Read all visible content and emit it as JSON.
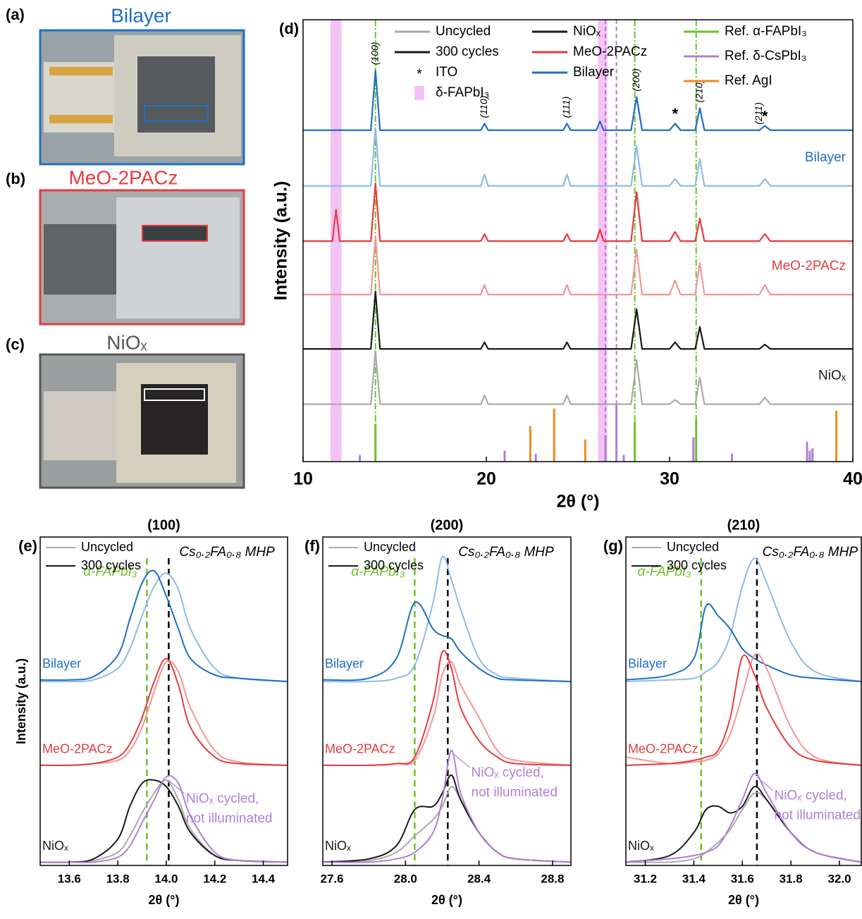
{
  "photos": [
    {
      "letter": "(a)",
      "title": "Bilayer"
    },
    {
      "letter": "(b)",
      "title": "MeO-2PACz"
    },
    {
      "letter": "(c)",
      "title": "NiOₓ"
    }
  ],
  "chart_data": [
    {
      "type": "line",
      "panel": "(d)",
      "xlabel": "2θ (°)",
      "ylabel": "Intensity (a.u.)",
      "xlim": [
        10,
        40
      ],
      "xticks": [
        10,
        20,
        30,
        40
      ],
      "ylim": [
        0,
        100
      ],
      "legend": [
        [
          {
            "label": "Uncycled",
            "color": "#aaaaaa"
          },
          {
            "label": "300 cycles",
            "color": "#1a1a1a"
          },
          {
            "label": "ITO",
            "marker": "*"
          },
          {
            "label": "δ-FAPbI₃",
            "color": "#f5c2f5",
            "marker": "band"
          }
        ],
        [
          {
            "label": "NiOₓ",
            "color": "#1a1a1a"
          },
          {
            "label": "MeO-2PACz",
            "color": "#e63b3f"
          },
          {
            "label": "Bilayer",
            "color": "#1f6fc5"
          }
        ]
      ],
      "bands": [
        [
          11.5,
          12.1
        ],
        [
          26.1,
          26.6
        ]
      ],
      "references": [
        {
          "name": "Ref. α-FAPbI₃",
          "color": "#6cc12a",
          "guide": "dash-dot",
          "positions": [
            13.95,
            28.1,
            31.45
          ],
          "heights": [
            8.5,
            9,
            9.5
          ]
        },
        {
          "name": "Ref. δ-CsPbI₃",
          "color": "#b07fd8",
          "guide": "dashed",
          "positions": [
            13.1,
            21.0,
            22.7,
            26.5,
            27.1,
            27.5,
            31.3,
            33.4,
            37.5,
            37.65,
            37.8
          ],
          "heights": [
            1.5,
            2.5,
            1.8,
            6,
            13,
            1.5,
            5.5,
            1.8,
            4.5,
            2.5,
            3
          ]
        },
        {
          "name": "Ref. AgI",
          "color": "#f08a1c",
          "positions": [
            22.4,
            23.7,
            25.4,
            39.1
          ],
          "heights": [
            8,
            12,
            5,
            11.5
          ]
        }
      ],
      "x": [
        10,
        11.6,
        11.8,
        12.0,
        13.7,
        13.95,
        14.2,
        19.7,
        19.9,
        20.1,
        24.2,
        24.4,
        24.6,
        26.0,
        26.2,
        26.4,
        27.9,
        28.2,
        28.5,
        30.0,
        30.3,
        30.6,
        31.4,
        31.65,
        31.9,
        34.9,
        35.2,
        35.5,
        40
      ],
      "series": [
        {
          "color": "#aaaaaa",
          "label": "NiOₓ",
          "label_color": "#1a1a1a",
          "values": [
            13,
            13,
            13,
            13,
            13,
            25,
            13,
            13,
            15,
            13,
            13,
            15,
            13,
            13,
            13,
            13,
            13,
            23,
            13,
            13,
            14,
            13,
            13,
            19,
            13,
            13,
            14.5,
            13,
            13
          ]
        },
        {
          "color": "#1a1a1a",
          "values": [
            25.5,
            25.5,
            25.5,
            25.5,
            25.5,
            38.5,
            25.5,
            25.5,
            27,
            25.5,
            25.5,
            27,
            25.5,
            25.5,
            25.5,
            25.5,
            25.5,
            34.5,
            25.5,
            25.5,
            27,
            25.5,
            25.5,
            30.5,
            25.5,
            25.5,
            26.5,
            25.5,
            25.5
          ]
        },
        {
          "color": "#f29696",
          "label": "MeO-2PACz",
          "label_color": "#e63b3f",
          "values": [
            37.8,
            37.8,
            37.8,
            37.8,
            37.8,
            51,
            37.8,
            37.8,
            40,
            37.8,
            37.8,
            40,
            37.8,
            37.8,
            37.8,
            37.8,
            37.8,
            48,
            37.8,
            37.8,
            41,
            37.8,
            37.8,
            45,
            37.8,
            37.8,
            40,
            37.8,
            37.8
          ]
        },
        {
          "color": "#e63b3f",
          "values": [
            49.9,
            49.9,
            57,
            49.9,
            49.9,
            63,
            49.9,
            49.9,
            51.5,
            49.9,
            49.9,
            51.5,
            49.9,
            49.9,
            52.5,
            49.9,
            49.9,
            61,
            49.9,
            49.9,
            52,
            49.9,
            49.9,
            55,
            49.9,
            49.9,
            51.5,
            49.9,
            49.9
          ]
        },
        {
          "color": "#8fbbe8",
          "label": "Bilayer",
          "label_color": "#1f6fc5",
          "values": [
            62.4,
            62.4,
            62.4,
            62.4,
            62.4,
            75.4,
            62.4,
            62.4,
            65,
            62.4,
            62.4,
            65,
            62.4,
            62.4,
            62.4,
            62.4,
            62.4,
            71.5,
            62.4,
            62.4,
            64,
            62.4,
            62.4,
            68.5,
            62.4,
            62.4,
            64,
            62.4,
            62.4
          ]
        },
        {
          "color": "#1f6fc5",
          "values": [
            75,
            75,
            75,
            75,
            75,
            88.5,
            75,
            75,
            76.5,
            75,
            75,
            76.5,
            75,
            75,
            77,
            75,
            75,
            82.5,
            75,
            75,
            76.5,
            75,
            75,
            80,
            75,
            75,
            76,
            75,
            75
          ]
        }
      ],
      "annotations": [
        {
          "text": "(100)",
          "x": 13.95,
          "rotated": true
        },
        {
          "text": "(110)",
          "x": 19.9,
          "rotated": true
        },
        {
          "text": "(111)",
          "x": 24.4,
          "rotated": true
        },
        {
          "text": "(200)",
          "x": 28.2,
          "rotated": true
        },
        {
          "text": "*",
          "x": 30.3
        },
        {
          "text": "(210)",
          "x": 31.65,
          "rotated": true
        },
        {
          "text": "(211)",
          "x": 34.9,
          "rotated": true
        },
        {
          "text": "*",
          "x": 35.2
        }
      ]
    },
    {
      "type": "line",
      "panel": "(e)",
      "title": "(100)",
      "xlabel": "2θ (°)",
      "ylabel": "Intensity (a.u.)",
      "xlim": [
        13.48,
        14.5
      ],
      "xticks": [
        13.6,
        13.8,
        {
          "value": 14,
          "label": "14.0"
        },
        14.2,
        14.4
      ],
      "ylim": [
        0,
        100
      ],
      "legend": [
        {
          "label": "Uncycled",
          "color": "#aaaaaa"
        },
        {
          "label": "300 cycles",
          "color": "#1a1a1a"
        }
      ],
      "guides": [
        {
          "x": 13.92,
          "label": "α-FAPbI₃",
          "color": "#6cc12a"
        },
        {
          "x": 14.01,
          "label": "Cs₀.₂FA₀.₈ MHP",
          "color": "#000000"
        }
      ],
      "x": [
        13.48,
        13.6,
        13.7,
        13.8,
        13.85,
        13.9,
        13.95,
        14.0,
        14.05,
        14.1,
        14.2,
        14.3,
        14.5
      ],
      "series": [
        {
          "color": "#8fbbe8",
          "values": [
            56,
            56,
            56.5,
            60,
            66,
            76,
            85,
            89,
            84,
            72,
            60,
            57,
            56
          ]
        },
        {
          "color": "#1f6fc5",
          "label": "Bilayer",
          "values": [
            56.5,
            56.5,
            57.5,
            64,
            75,
            86,
            89.7,
            82,
            72,
            63,
            58,
            57,
            56
          ]
        },
        {
          "color": "#f29696",
          "values": [
            30.5,
            30.5,
            31,
            32,
            35,
            42,
            53,
            62,
            59,
            48,
            35,
            31.5,
            30.5
          ]
        },
        {
          "color": "#e63b3f",
          "label": "MeO-2PACz",
          "values": [
            30.5,
            30.5,
            31,
            33,
            37,
            45,
            56,
            63,
            55,
            42,
            33,
            31,
            30.5
          ]
        },
        {
          "color": "#aaaaaa",
          "values": [
            1,
            1,
            1.5,
            4,
            9,
            16,
            22,
            26,
            20,
            11,
            3,
            1.5,
            1
          ]
        },
        {
          "color": "#1a1a1a",
          "label": "NiOₓ",
          "values": [
            1,
            1,
            2,
            8,
            18,
            25,
            26,
            24,
            18,
            10,
            3,
            1.5,
            1
          ]
        },
        {
          "color": "#b07fd8",
          "label": [
            "NiOₓ cycled,",
            "not illuminated"
          ],
          "values": [
            1,
            1,
            1,
            2.5,
            6,
            13,
            20,
            27,
            25,
            15,
            4,
            1.5,
            1
          ]
        }
      ]
    },
    {
      "type": "line",
      "panel": "(f)",
      "title": "(200)",
      "xlabel": "2θ (°)",
      "xlim": [
        27.55,
        28.9
      ],
      "xticks": [
        27.6,
        {
          "value": 28,
          "label": "28.0"
        },
        28.4,
        28.8
      ],
      "ylim": [
        0,
        100
      ],
      "legend": [
        {
          "label": "Uncycled",
          "color": "#aaaaaa"
        },
        {
          "label": "300 cycles",
          "color": "#1a1a1a"
        }
      ],
      "guides": [
        {
          "x": 28.05,
          "label": "α-FAPbI₃",
          "color": "#6cc12a"
        },
        {
          "x": 28.23,
          "label": "Cs₀.₂FA₀.₈ MHP",
          "color": "#000000"
        }
      ],
      "x": [
        27.55,
        27.8,
        27.95,
        28.05,
        28.15,
        28.2,
        28.25,
        28.3,
        28.4,
        28.5,
        28.6,
        28.9
      ],
      "series": [
        {
          "color": "#8fbbe8",
          "values": [
            56,
            56,
            57,
            61,
            80,
            94,
            87,
            78,
            63,
            58,
            57,
            56
          ]
        },
        {
          "color": "#1f6fc5",
          "label": "Bilayer",
          "values": [
            56.5,
            57,
            63,
            80,
            72,
            70,
            69,
            65,
            60,
            57,
            56.5,
            56
          ]
        },
        {
          "color": "#f29696",
          "values": [
            30.5,
            30.5,
            31,
            32,
            45,
            58,
            62,
            55,
            45,
            35,
            32,
            30.5
          ]
        },
        {
          "color": "#e63b3f",
          "label": "MeO-2PACz",
          "values": [
            30.5,
            30.5,
            31,
            33,
            50,
            65,
            60,
            48,
            38,
            33,
            31,
            30.5
          ]
        },
        {
          "color": "#aaaaaa",
          "values": [
            1,
            1.5,
            4,
            9,
            14,
            18,
            24,
            20,
            10,
            4,
            2,
            1
          ]
        },
        {
          "color": "#1a1a1a",
          "label": "NiOₓ",
          "values": [
            1,
            2,
            6,
            17,
            18,
            22,
            27.5,
            20,
            10,
            4,
            2,
            1
          ]
        },
        {
          "color": "#b07fd8",
          "label": [
            "NiOₓ cycled,",
            "not illuminated"
          ],
          "values": [
            1,
            1,
            2,
            4,
            10,
            20,
            35,
            22,
            10,
            4,
            2,
            1
          ]
        }
      ]
    },
    {
      "type": "line",
      "panel": "(g)",
      "title": "(210)",
      "xlabel": "2θ (°)",
      "xlim": [
        31.12,
        32.09
      ],
      "xticks": [
        31.2,
        31.4,
        31.6,
        31.8,
        {
          "value": 32,
          "label": "32.0"
        }
      ],
      "ylim": [
        0,
        100
      ],
      "legend": [
        {
          "label": "Uncycled",
          "color": "#aaaaaa"
        },
        {
          "label": "300 cycles",
          "color": "#1a1a1a"
        }
      ],
      "guides": [
        {
          "x": 31.43,
          "label": "α-FAPbI₃",
          "color": "#6cc12a"
        },
        {
          "x": 31.66,
          "label": "Cs₀.₂FA₀.₈ MHP",
          "color": "#000000"
        }
      ],
      "x": [
        31.12,
        31.3,
        31.4,
        31.45,
        31.5,
        31.55,
        31.6,
        31.65,
        31.7,
        31.8,
        31.9,
        32.09
      ],
      "series": [
        {
          "color": "#8fbbe8",
          "values": [
            56,
            56.5,
            57,
            59,
            62,
            70,
            85,
            93.5,
            86,
            68,
            59,
            56
          ]
        },
        {
          "color": "#1f6fc5",
          "label": "Bilayer",
          "values": [
            56.5,
            58,
            63,
            79,
            76,
            72,
            66,
            63,
            61,
            58,
            57,
            56
          ]
        },
        {
          "color": "#f29696",
          "values": [
            33,
            31,
            31.5,
            32,
            34,
            40,
            52,
            64,
            60,
            42,
            33,
            30.5
          ]
        },
        {
          "color": "#e63b3f",
          "label": "MeO-2PACz",
          "values": [
            30.5,
            31,
            32,
            33,
            35,
            45,
            63.5,
            58,
            48,
            36,
            32,
            30.5
          ]
        },
        {
          "color": "#aaaaaa",
          "values": [
            1,
            1,
            2,
            4,
            7,
            11,
            17,
            22,
            20,
            10,
            4,
            1
          ]
        },
        {
          "color": "#1a1a1a",
          "label": "NiOₓ",
          "values": [
            1,
            3,
            10,
            17,
            18,
            16,
            18,
            24,
            20,
            10,
            4,
            1
          ]
        },
        {
          "color": "#b07fd8",
          "label": [
            "NiOₓ cycled,",
            "not illuminated"
          ],
          "values": [
            1,
            2,
            3,
            4,
            6,
            12,
            20,
            28,
            22,
            10,
            4,
            1
          ]
        }
      ]
    }
  ]
}
